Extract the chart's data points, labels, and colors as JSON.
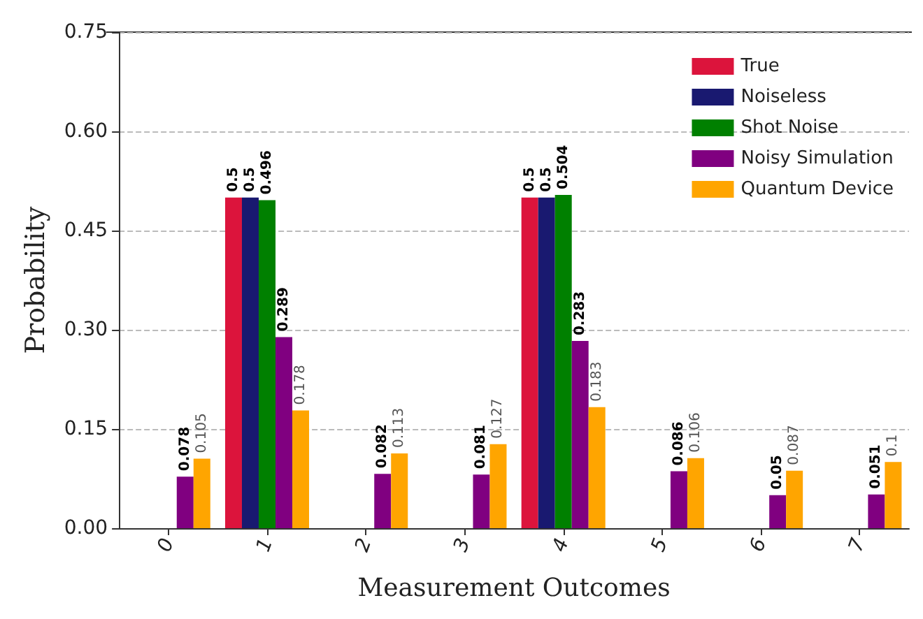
{
  "chart_data": {
    "type": "bar",
    "xlabel": "Measurement Outcomes",
    "ylabel": "Probability",
    "categories": [
      "0",
      "1",
      "2",
      "3",
      "4",
      "5",
      "6",
      "7"
    ],
    "series": [
      {
        "name": "True",
        "color": "#dc143c",
        "values": [
          0,
          0.5,
          0,
          0,
          0.5,
          0,
          0,
          0
        ],
        "value_labels": [
          null,
          "0.5",
          null,
          null,
          "0.5",
          null,
          null,
          null
        ]
      },
      {
        "name": "Noiseless",
        "color": "#191970",
        "values": [
          0,
          0.5,
          0,
          0,
          0.5,
          0,
          0,
          0
        ],
        "value_labels": [
          null,
          "0.5",
          null,
          null,
          "0.5",
          null,
          null,
          null
        ]
      },
      {
        "name": "Shot Noise",
        "color": "#008000",
        "values": [
          0,
          0.496,
          0,
          0,
          0.504,
          0,
          0,
          0
        ],
        "value_labels": [
          null,
          "0.496",
          null,
          null,
          "0.504",
          null,
          null,
          null
        ]
      },
      {
        "name": "Noisy Simulation",
        "color": "#800080",
        "values": [
          0.078,
          0.289,
          0.082,
          0.081,
          0.283,
          0.086,
          0.05,
          0.051
        ],
        "value_labels": [
          "0.078",
          "0.289",
          "0.082",
          "0.081",
          "0.283",
          "0.086",
          "0.05",
          "0.051"
        ]
      },
      {
        "name": "Quantum Device",
        "color": "#ffa500",
        "values": [
          0.105,
          0.178,
          0.113,
          0.127,
          0.183,
          0.106,
          0.087,
          0.1
        ],
        "value_labels": [
          "0.105",
          "0.178",
          "0.113",
          "0.127",
          "0.183",
          "0.106",
          "0.087",
          "0.1"
        ]
      }
    ],
    "ylim": [
      0,
      0.75
    ],
    "yticks": [
      {
        "value": 0,
        "label": "0.00"
      },
      {
        "value": 0.15,
        "label": "0.15"
      },
      {
        "value": 0.3,
        "label": "0.30"
      },
      {
        "value": 0.45,
        "label": "0.45"
      },
      {
        "value": 0.6,
        "label": "0.60"
      },
      {
        "value": 0.75,
        "label": "0.75"
      }
    ],
    "grid": "y",
    "legend": "top right"
  }
}
